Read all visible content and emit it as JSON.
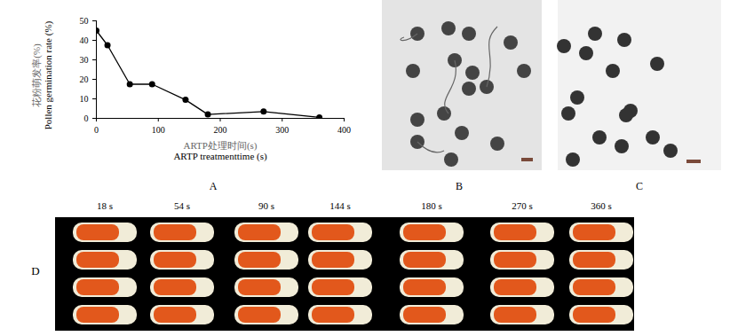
{
  "chart_data": {
    "type": "line",
    "panel": "A",
    "x": [
      0,
      18,
      54,
      90,
      144,
      180,
      270,
      360
    ],
    "values": [
      45,
      37.5,
      17.5,
      17.5,
      9.5,
      2,
      3.5,
      0.5
    ],
    "xlabel": [
      "ARTP处理时间(s)",
      "ARTP treatmenttime (s)"
    ],
    "ylabel": [
      "花粉萌发率(%)",
      "Pollen germination rate (%)"
    ],
    "xlim": [
      0,
      400
    ],
    "xticks": [
      0,
      100,
      200,
      300,
      400
    ],
    "ylim": [
      0,
      50
    ],
    "yticks": [
      0,
      10,
      20,
      30,
      40,
      50
    ],
    "color": "#000000",
    "marker": "circle",
    "grid": false
  },
  "images": [
    {
      "panel": "B"
    },
    {
      "panel": "C"
    },
    {
      "panel": "D",
      "column_labels": [
        "18 s",
        "54 s",
        "90 s",
        "144 s",
        "180 s",
        "270 s",
        "360 s"
      ]
    }
  ]
}
